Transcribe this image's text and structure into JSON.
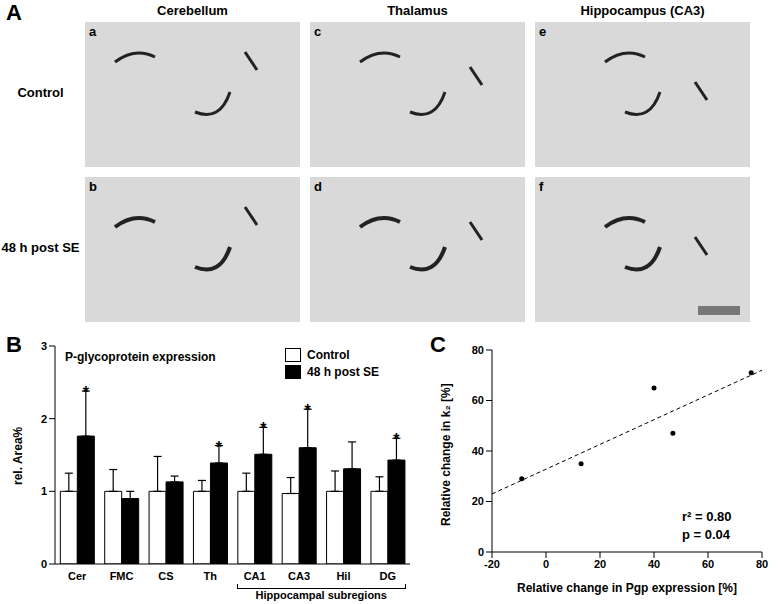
{
  "panel_labels": [
    "A",
    "B",
    "C"
  ],
  "micrographs": {
    "columns": [
      "Cerebellum",
      "Thalamus",
      "Hippocampus (CA3)"
    ],
    "rows": [
      "Control",
      "48 h post SE"
    ],
    "letters": [
      [
        "a",
        "c",
        "e"
      ],
      [
        "b",
        "d",
        "f"
      ]
    ]
  },
  "chart_data": [
    {
      "type": "bar",
      "title": "P-glycoprotein expression",
      "y_label": "rel. Area%",
      "categories": [
        "Cer",
        "FMC",
        "CS",
        "Th",
        "CA1",
        "CA3",
        "Hil",
        "DG"
      ],
      "series": [
        {
          "name": "Control",
          "color": "#ffffff",
          "values": [
            1.0,
            1.0,
            1.0,
            1.0,
            1.0,
            0.97,
            1.0,
            1.0
          ],
          "errors": [
            0.25,
            0.3,
            0.48,
            0.15,
            0.25,
            0.22,
            0.28,
            0.2
          ]
        },
        {
          "name": "48 h post SE",
          "color": "#000000",
          "values": [
            1.76,
            0.9,
            1.13,
            1.39,
            1.51,
            1.6,
            1.31,
            1.43
          ],
          "errors": [
            0.62,
            0.1,
            0.08,
            0.24,
            0.37,
            0.53,
            0.37,
            0.3
          ]
        }
      ],
      "ylim": [
        0,
        3
      ],
      "yticks": [
        0,
        1,
        2,
        3
      ],
      "legend": "top-right",
      "annotations": [
        {
          "category": "Cer",
          "series": "48 h post SE",
          "text": "*"
        },
        {
          "category": "Th",
          "series": "48 h post SE",
          "text": "*"
        },
        {
          "category": "CA1",
          "series": "48 h post SE",
          "text": "*"
        },
        {
          "category": "CA3",
          "series": "48 h post SE",
          "text": "*"
        },
        {
          "category": "DG",
          "series": "48 h post SE",
          "text": "*"
        }
      ],
      "group_labels": [
        {
          "text": "Hippocampal subregions",
          "categories": [
            "CA1",
            "DG"
          ]
        }
      ]
    },
    {
      "type": "scatter",
      "x_label": "Relative change in Pgp expression [%]",
      "y_label": "Relative change in k₂ [%]",
      "x": [
        -9,
        13,
        40,
        47,
        76
      ],
      "values": [
        29,
        35,
        65,
        47,
        71
      ],
      "color": "#000000",
      "marker": "circle",
      "fit": {
        "x": [
          -20,
          80
        ],
        "y": [
          23,
          72
        ],
        "line_style": "dashed"
      },
      "xlim": [
        -20,
        80
      ],
      "xticks": [
        -20,
        0,
        20,
        40,
        60,
        80
      ],
      "ylim": [
        0,
        80
      ],
      "yticks": [
        0,
        20,
        40,
        60,
        80
      ],
      "annotations": [
        "r² = 0.80",
        "p = 0.04"
      ]
    }
  ]
}
